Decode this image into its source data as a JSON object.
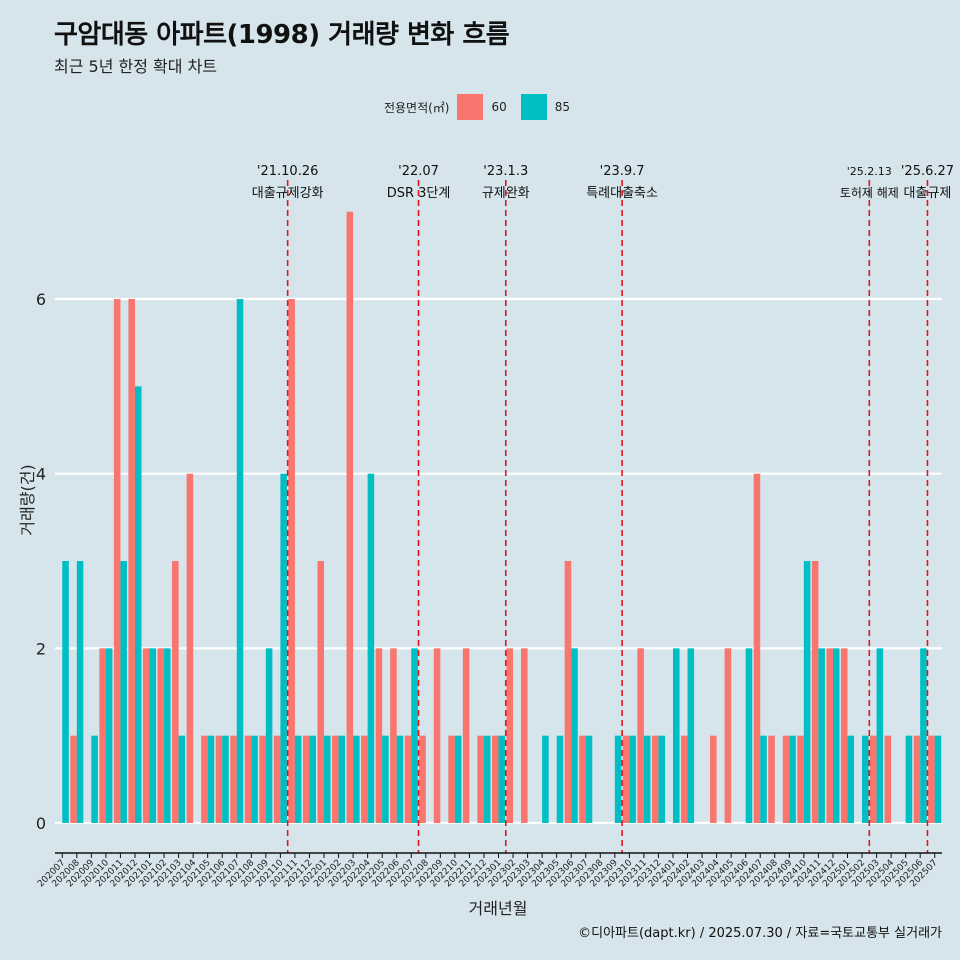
{
  "caption": "©디아파트(dapt.kr) / 2025.07.30 / 자료=국토교통부 실거래가",
  "colors": {
    "s60": "#f8766d",
    "s85": "#00bfc4",
    "event": "#e8141a",
    "background": "#d6e4eb",
    "grid": "#ffffff"
  },
  "chart_data": {
    "type": "bar",
    "title": "구암대동 아파트(1998) 거래량 변화 흐름",
    "subtitle": "최근 5년 한정 확대 차트",
    "xlabel": "거래년월",
    "ylabel": "거래량(건)",
    "legend_title": "전용면적(㎡)",
    "ylim": [
      0,
      7
    ],
    "yticks": [
      0,
      2,
      4,
      6
    ],
    "categories": [
      "202007",
      "202008",
      "202009",
      "202010",
      "202011",
      "202012",
      "202101",
      "202102",
      "202103",
      "202104",
      "202105",
      "202106",
      "202107",
      "202108",
      "202109",
      "202110",
      "202111",
      "202112",
      "202201",
      "202202",
      "202203",
      "202204",
      "202205",
      "202206",
      "202207",
      "202208",
      "202209",
      "202210",
      "202211",
      "202212",
      "202301",
      "202302",
      "202303",
      "202304",
      "202305",
      "202306",
      "202307",
      "202308",
      "202309",
      "202310",
      "202311",
      "202312",
      "202401",
      "202402",
      "202403",
      "202404",
      "202405",
      "202406",
      "202407",
      "202408",
      "202409",
      "202410",
      "202411",
      "202412",
      "202501",
      "202502",
      "202503",
      "202504",
      "202505",
      "202506",
      "202507"
    ],
    "series": [
      {
        "name": "60",
        "values": [
          0,
          1,
          0,
          2,
          6,
          6,
          2,
          2,
          3,
          4,
          1,
          1,
          1,
          1,
          1,
          1,
          6,
          1,
          3,
          1,
          7,
          1,
          2,
          2,
          1,
          1,
          2,
          1,
          2,
          1,
          1,
          2,
          2,
          0,
          0,
          3,
          1,
          0,
          0,
          1,
          2,
          1,
          0,
          1,
          0,
          1,
          2,
          0,
          4,
          1,
          1,
          1,
          3,
          2,
          2,
          0,
          1,
          1,
          0,
          1,
          1
        ]
      },
      {
        "name": "85",
        "values": [
          3,
          3,
          1,
          2,
          3,
          5,
          2,
          2,
          1,
          0,
          1,
          1,
          6,
          1,
          2,
          4,
          1,
          1,
          1,
          1,
          1,
          4,
          1,
          1,
          2,
          0,
          0,
          1,
          0,
          1,
          1,
          0,
          0,
          1,
          1,
          2,
          1,
          0,
          1,
          1,
          1,
          1,
          2,
          2,
          0,
          0,
          0,
          2,
          1,
          0,
          1,
          3,
          2,
          2,
          1,
          1,
          2,
          0,
          1,
          2,
          1
        ]
      }
    ],
    "events": [
      {
        "date": "'21.10.26",
        "label": "대출규제강화",
        "after": "202110"
      },
      {
        "date": "'22.07",
        "label": "DSR 3단계",
        "after": "202207"
      },
      {
        "date": "'23.1.3",
        "label": "규제완화",
        "after": "202301"
      },
      {
        "date": "'23.9.7",
        "label": "특례대출축소",
        "after": "202309"
      },
      {
        "date": "'25.2.13",
        "label": "토허제 해제",
        "after": "202502"
      },
      {
        "date": "'25.6.27",
        "label": "대출규제",
        "after": "202506"
      }
    ]
  }
}
